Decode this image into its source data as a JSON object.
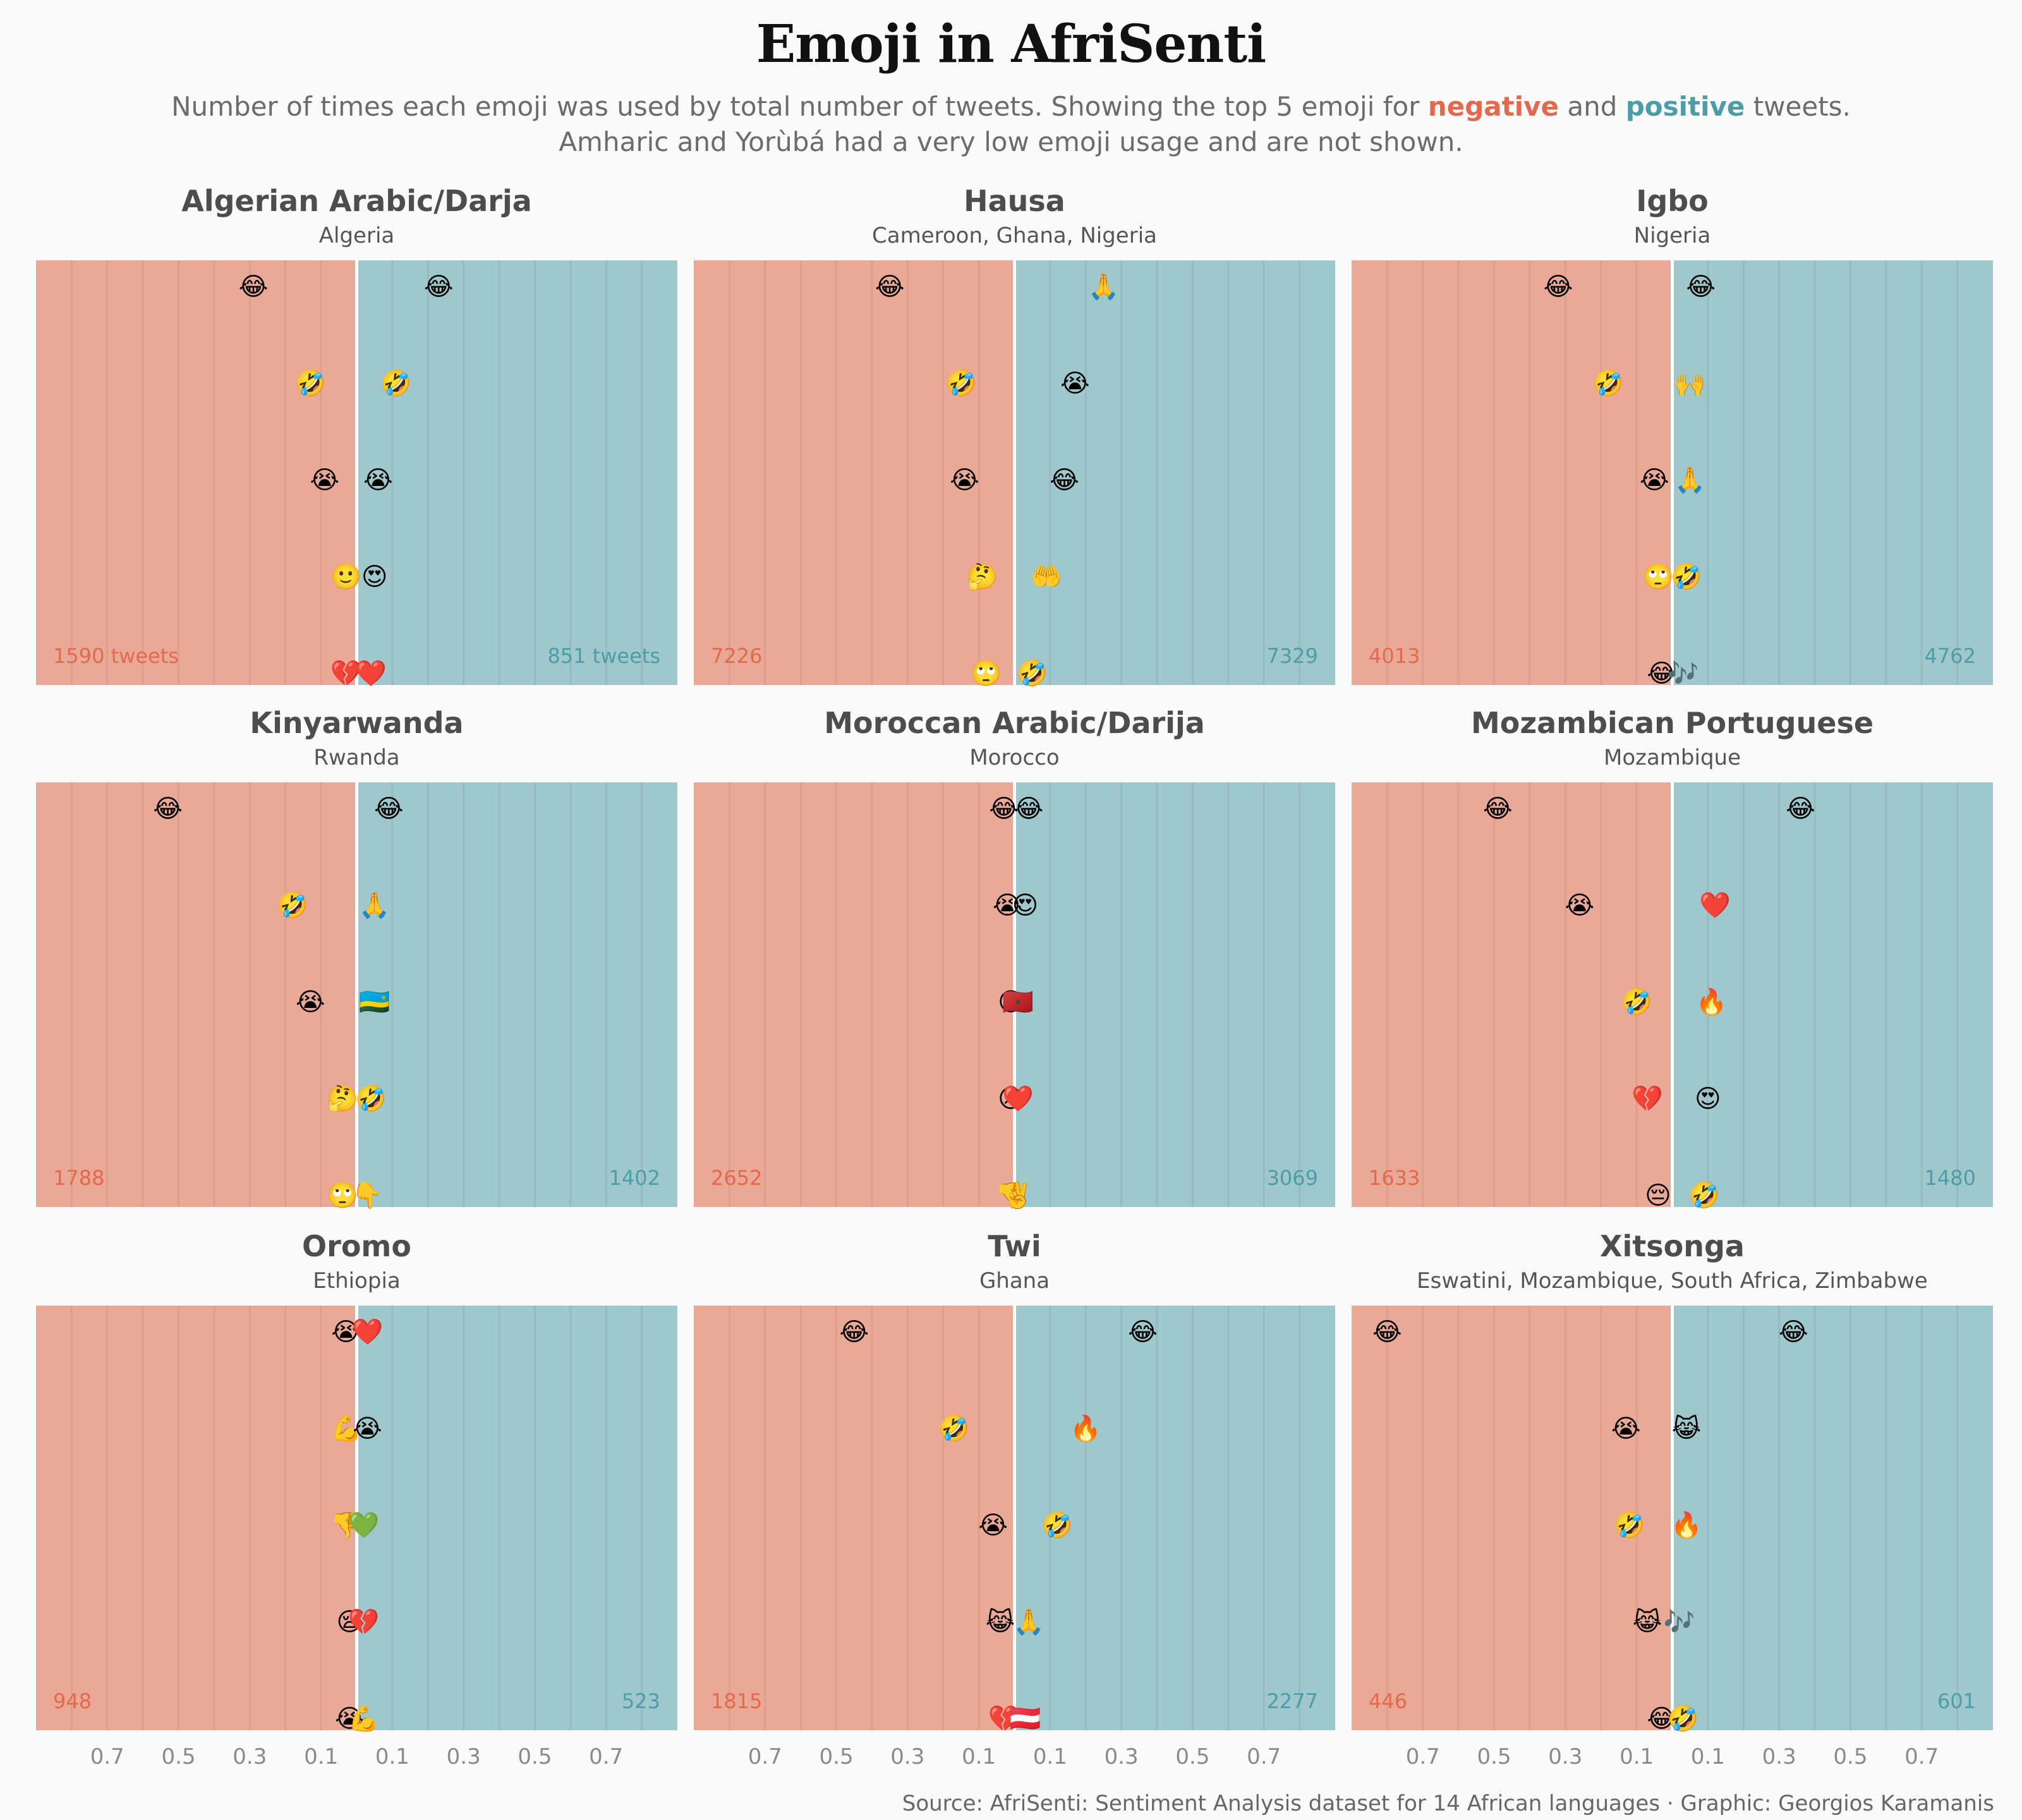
{
  "title": "Emoji in AfriSenti",
  "subtitle": {
    "line1_pre": "Number of times each emoji was used by total number of tweets. Showing the top 5 emoji for ",
    "negative": "negative",
    "and": " and ",
    "positive": "positive",
    "line1_post": " tweets.",
    "line2": "Amharic and Yorùbá had a very low emoji usage and are not shown."
  },
  "source": "Source: AfriSenti: Sentiment Analysis dataset for 14 African languages · Graphic: Georgios Karamanis",
  "colors": {
    "negative_bg": "#eaa996",
    "positive_bg": "#9ec8cc",
    "negative_text": "#e2694b",
    "positive_text": "#4d9da6",
    "divider": "#ffffff"
  },
  "chart_data": {
    "type": "scatter",
    "x_tick_labels": [
      "0.7",
      "0.5",
      "0.3",
      "0.1",
      "0.1",
      "0.3",
      "0.5",
      "0.7"
    ],
    "x_tick_values": [
      -0.7,
      -0.5,
      -0.3,
      -0.1,
      0.1,
      0.3,
      0.5,
      0.7
    ],
    "xlim": [
      -0.9,
      0.9
    ],
    "panels": [
      {
        "language": "Algerian Arabic/Darja",
        "countries": "Algeria",
        "negative_tweets_label": "1590 tweets",
        "positive_tweets_label": "851 tweets",
        "negative": [
          {
            "emoji": "😂",
            "value": 0.29
          },
          {
            "emoji": "🤣",
            "value": 0.13
          },
          {
            "emoji": "😭",
            "value": 0.09
          },
          {
            "emoji": "🙂",
            "value": 0.03
          },
          {
            "emoji": "💔",
            "value": 0.03
          }
        ],
        "positive": [
          {
            "emoji": "😂",
            "value": 0.23
          },
          {
            "emoji": "🤣",
            "value": 0.11
          },
          {
            "emoji": "😭",
            "value": 0.06
          },
          {
            "emoji": "😍",
            "value": 0.05
          },
          {
            "emoji": "❤️",
            "value": 0.04
          }
        ]
      },
      {
        "language": "Hausa",
        "countries": "Cameroon, Ghana, Nigeria",
        "negative_tweets_label": "7226",
        "positive_tweets_label": "7329",
        "negative": [
          {
            "emoji": "😂",
            "value": 0.35
          },
          {
            "emoji": "🤣",
            "value": 0.15
          },
          {
            "emoji": "😭",
            "value": 0.14
          },
          {
            "emoji": "🤔",
            "value": 0.09
          },
          {
            "emoji": "🙄",
            "value": 0.08
          }
        ],
        "positive": [
          {
            "emoji": "🙏",
            "value": 0.25
          },
          {
            "emoji": "😭",
            "value": 0.17
          },
          {
            "emoji": "😂",
            "value": 0.14
          },
          {
            "emoji": "🤲",
            "value": 0.09
          },
          {
            "emoji": "🤣",
            "value": 0.05
          }
        ]
      },
      {
        "language": "Igbo",
        "countries": "Nigeria",
        "negative_tweets_label": "4013",
        "positive_tweets_label": "4762",
        "negative": [
          {
            "emoji": "😂",
            "value": 0.32
          },
          {
            "emoji": "🤣",
            "value": 0.18
          },
          {
            "emoji": "😭",
            "value": 0.05
          },
          {
            "emoji": "🙄",
            "value": 0.04
          },
          {
            "emoji": "😂",
            "value": 0.03
          }
        ],
        "positive": [
          {
            "emoji": "😂",
            "value": 0.08
          },
          {
            "emoji": "🙌",
            "value": 0.05
          },
          {
            "emoji": "🙏",
            "value": 0.05
          },
          {
            "emoji": "🤣",
            "value": 0.04
          },
          {
            "emoji": "🎶",
            "value": 0.03
          }
        ]
      },
      {
        "language": "Kinyarwanda",
        "countries": "Rwanda",
        "negative_tweets_label": "1788",
        "positive_tweets_label": "1402",
        "negative": [
          {
            "emoji": "😂",
            "value": 0.53
          },
          {
            "emoji": "🤣",
            "value": 0.18
          },
          {
            "emoji": "😭",
            "value": 0.13
          },
          {
            "emoji": "🤔",
            "value": 0.04
          },
          {
            "emoji": "🙄",
            "value": 0.04
          }
        ],
        "positive": [
          {
            "emoji": "😂",
            "value": 0.09
          },
          {
            "emoji": "🙏",
            "value": 0.05
          },
          {
            "emoji": "🇷🇼",
            "value": 0.05
          },
          {
            "emoji": "🤣",
            "value": 0.04
          },
          {
            "emoji": "👇",
            "value": 0.03
          }
        ]
      },
      {
        "language": "Moroccan Arabic/Darija",
        "countries": "Morocco",
        "negative_tweets_label": "2652",
        "positive_tweets_label": "3069",
        "negative": [
          {
            "emoji": "😂",
            "value": 0.03
          },
          {
            "emoji": "😭",
            "value": 0.02
          },
          {
            "emoji": "😡",
            "value": 0.01
          },
          {
            "emoji": "😢",
            "value": 0.01
          },
          {
            "emoji": "👎",
            "value": 0.01
          }
        ],
        "positive": [
          {
            "emoji": "😂",
            "value": 0.04
          },
          {
            "emoji": "😍",
            "value": 0.03
          },
          {
            "emoji": "🇲🇦",
            "value": 0.01
          },
          {
            "emoji": "❤️",
            "value": 0.01
          },
          {
            "emoji": "✌️",
            "value": 0.01
          }
        ]
      },
      {
        "language": "Mozambican Portuguese",
        "countries": "Mozambique",
        "negative_tweets_label": "1633",
        "positive_tweets_label": "1480",
        "negative": [
          {
            "emoji": "😂",
            "value": 0.49
          },
          {
            "emoji": "😭",
            "value": 0.26
          },
          {
            "emoji": "🤣",
            "value": 0.1
          },
          {
            "emoji": "💔",
            "value": 0.07
          },
          {
            "emoji": "😔",
            "value": 0.04
          }
        ],
        "positive": [
          {
            "emoji": "😂",
            "value": 0.36
          },
          {
            "emoji": "❤️",
            "value": 0.12
          },
          {
            "emoji": "🔥",
            "value": 0.11
          },
          {
            "emoji": "😍",
            "value": 0.1
          },
          {
            "emoji": "🤣",
            "value": 0.09
          }
        ]
      },
      {
        "language": "Oromo",
        "countries": "Ethiopia",
        "negative_tweets_label": "948",
        "positive_tweets_label": "523",
        "negative": [
          {
            "emoji": "😭",
            "value": 0.03
          },
          {
            "emoji": "💪",
            "value": 0.03
          },
          {
            "emoji": "👎",
            "value": 0.03
          },
          {
            "emoji": "😪",
            "value": 0.02
          },
          {
            "emoji": "😭",
            "value": 0.02
          }
        ],
        "positive": [
          {
            "emoji": "❤️",
            "value": 0.03
          },
          {
            "emoji": "😭",
            "value": 0.03
          },
          {
            "emoji": "💚",
            "value": 0.02
          },
          {
            "emoji": "💔",
            "value": 0.02
          },
          {
            "emoji": "💪",
            "value": 0.02
          }
        ]
      },
      {
        "language": "Twi",
        "countries": "Ghana",
        "negative_tweets_label": "1815",
        "positive_tweets_label": "2277",
        "negative": [
          {
            "emoji": "😂",
            "value": 0.45
          },
          {
            "emoji": "🤣",
            "value": 0.17
          },
          {
            "emoji": "😭",
            "value": 0.06
          },
          {
            "emoji": "😹",
            "value": 0.04
          },
          {
            "emoji": "💔",
            "value": 0.03
          }
        ],
        "positive": [
          {
            "emoji": "😂",
            "value": 0.36
          },
          {
            "emoji": "🔥",
            "value": 0.2
          },
          {
            "emoji": "🤣",
            "value": 0.12
          },
          {
            "emoji": "🙏",
            "value": 0.04
          },
          {
            "emoji": "🇦🇹",
            "value": 0.03
          }
        ]
      },
      {
        "language": "Xitsonga",
        "countries": "Eswatini, Mozambique, South Africa, Zimbabwe",
        "negative_tweets_label": "446",
        "positive_tweets_label": "601",
        "negative": [
          {
            "emoji": "😂",
            "value": 0.8
          },
          {
            "emoji": "😭",
            "value": 0.13
          },
          {
            "emoji": "🤣",
            "value": 0.12
          },
          {
            "emoji": "😹",
            "value": 0.07
          },
          {
            "emoji": "😂",
            "value": 0.03
          }
        ],
        "positive": [
          {
            "emoji": "😂",
            "value": 0.34
          },
          {
            "emoji": "😹",
            "value": 0.04
          },
          {
            "emoji": "🔥",
            "value": 0.04
          },
          {
            "emoji": "🎶",
            "value": 0.02
          },
          {
            "emoji": "🤣",
            "value": 0.03
          }
        ]
      }
    ]
  }
}
